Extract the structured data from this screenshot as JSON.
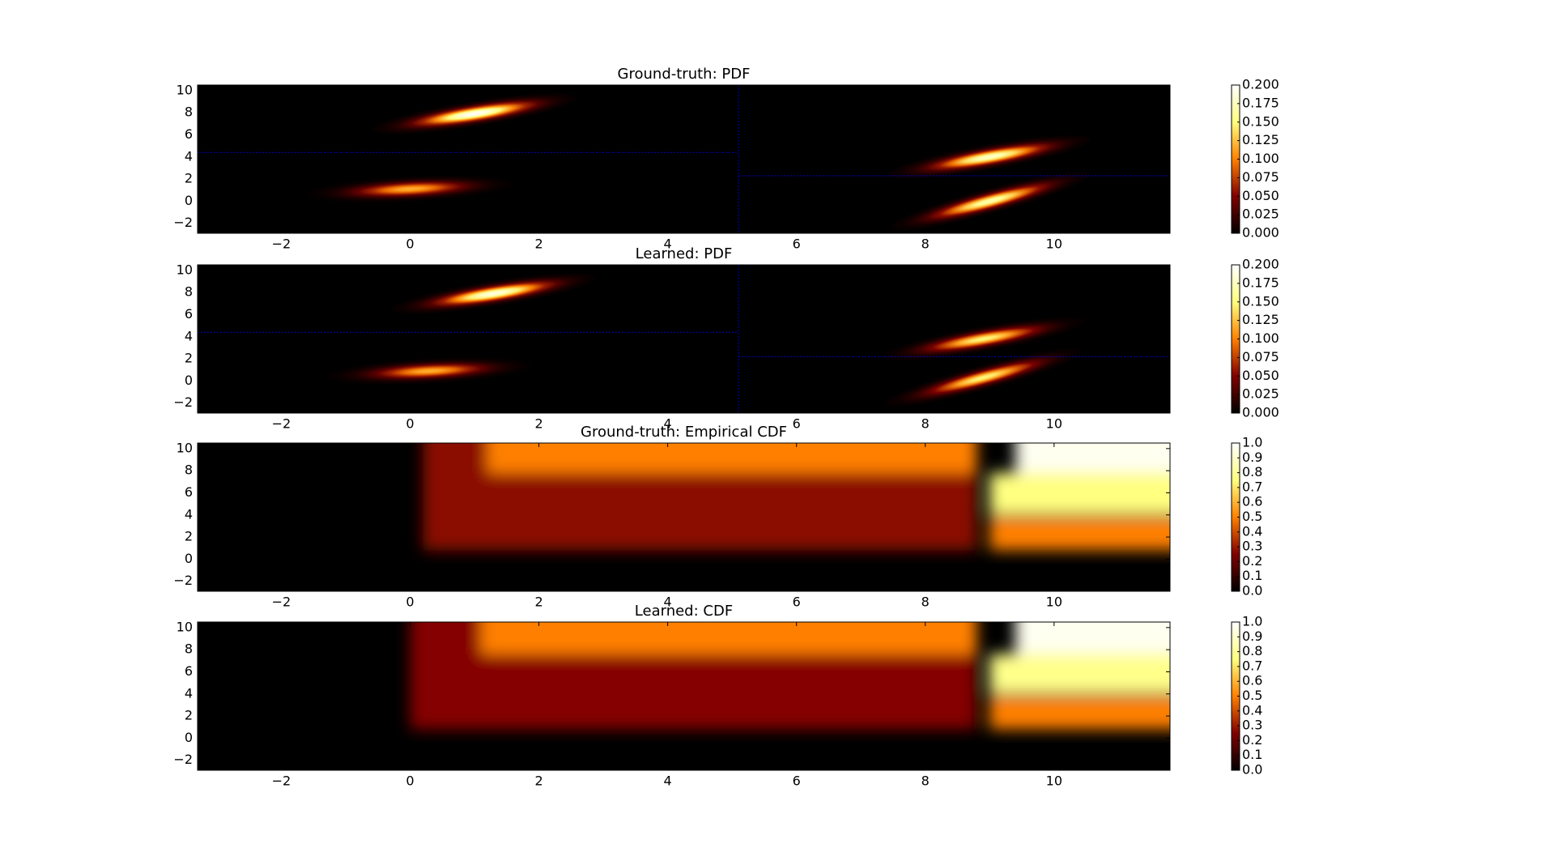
{
  "chart_data": [
    {
      "type": "pdf",
      "title": "Ground-truth: PDF",
      "colormap": "afmhot",
      "xlim": [
        -3.3,
        11.8
      ],
      "ylim": [
        -2.9,
        10.5
      ],
      "xticks": [
        {
          "value": -2,
          "label": "−2"
        },
        0,
        2,
        4,
        6,
        8,
        10
      ],
      "yticks": [
        {
          "value": -2,
          "label": "−2"
        },
        0,
        2,
        4,
        6,
        8,
        10
      ],
      "clim": [
        0,
        0.2
      ],
      "cticks": [
        {
          "value": 0,
          "label": "0.000"
        },
        0.025,
        {
          "value": 0.05,
          "label": "0.050"
        },
        0.075,
        {
          "value": 0.1,
          "label": "0.100"
        },
        0.125,
        {
          "value": 0.15,
          "label": "0.150"
        },
        0.175,
        {
          "value": 0.2,
          "label": "0.200"
        }
      ],
      "split_x": 5.1,
      "split_y_left": 4.4,
      "split_y_right": 2.3,
      "blobs": [
        {
          "x": 1.0,
          "y": 7.9,
          "peak": 0.2
        },
        {
          "x": 0.0,
          "y": 1.1,
          "peak": 0.12
        },
        {
          "x": 9.0,
          "y": 4.0,
          "peak": 0.18
        },
        {
          "x": 9.0,
          "y": 0.0,
          "peak": 0.17
        }
      ]
    },
    {
      "type": "pdf",
      "title": "Learned: PDF",
      "colormap": "afmhot",
      "xlim": [
        -3.3,
        11.8
      ],
      "ylim": [
        -2.9,
        10.5
      ],
      "xticks": [
        {
          "value": -2,
          "label": "−2"
        },
        0,
        2,
        4,
        6,
        8,
        10
      ],
      "yticks": [
        {
          "value": -2,
          "label": "−2"
        },
        0,
        2,
        4,
        6,
        8,
        10
      ],
      "clim": [
        0,
        0.2
      ],
      "cticks": [
        {
          "value": 0,
          "label": "0.000"
        },
        0.025,
        {
          "value": 0.05,
          "label": "0.050"
        },
        0.075,
        {
          "value": 0.1,
          "label": "0.100"
        },
        0.125,
        {
          "value": 0.15,
          "label": "0.150"
        },
        0.175,
        {
          "value": 0.2,
          "label": "0.200"
        }
      ],
      "split_x": 5.1,
      "split_y_left": 4.4,
      "split_y_right": 2.2,
      "blobs": [
        {
          "x": 1.3,
          "y": 7.9,
          "peak": 0.19
        },
        {
          "x": 0.3,
          "y": 0.9,
          "peak": 0.12
        },
        {
          "x": 8.9,
          "y": 3.8,
          "peak": 0.15
        },
        {
          "x": 8.9,
          "y": 0.3,
          "peak": 0.15
        }
      ]
    },
    {
      "type": "cdf",
      "title": "Ground-truth: Empirical CDF",
      "colormap": "afmhot",
      "xlim": [
        -3.3,
        11.8
      ],
      "ylim": [
        -2.9,
        10.5
      ],
      "xticks": [
        {
          "value": -2,
          "label": "−2"
        },
        0,
        2,
        4,
        6,
        8,
        10
      ],
      "yticks": [
        {
          "value": -2,
          "label": "−2"
        },
        0,
        2,
        4,
        6,
        8,
        10
      ],
      "clim": [
        0,
        1
      ],
      "cticks": [
        {
          "value": 0,
          "label": "0.0"
        },
        0.1,
        0.2,
        0.3,
        0.4,
        0.5,
        0.6,
        0.7,
        0.8,
        0.9,
        {
          "value": 1,
          "label": "1.0"
        }
      ],
      "regions": [
        {
          "x": [
            0.2,
            8.8
          ],
          "y": [
            0.8,
            10.5
          ],
          "value": 0.27
        },
        {
          "x": [
            1.2,
            8.8
          ],
          "y": [
            7.8,
            10.5
          ],
          "value": 0.5
        },
        {
          "x": [
            9.0,
            11.8
          ],
          "y": [
            0.8,
            3.8
          ],
          "value": 0.5
        },
        {
          "x": [
            9.0,
            11.8
          ],
          "y": [
            4.0,
            7.8
          ],
          "value": 0.75
        },
        {
          "x": [
            9.4,
            11.8
          ],
          "y": [
            7.8,
            10.5
          ],
          "value": 0.97
        }
      ]
    },
    {
      "type": "cdf",
      "title": "Learned: CDF",
      "colormap": "afmhot",
      "xlim": [
        -3.3,
        11.8
      ],
      "ylim": [
        -2.9,
        10.5
      ],
      "xticks": [
        {
          "value": -2,
          "label": "−2"
        },
        0,
        2,
        4,
        6,
        8,
        10
      ],
      "yticks": [
        {
          "value": -2,
          "label": "−2"
        },
        0,
        2,
        4,
        6,
        8,
        10
      ],
      "clim": [
        0,
        1
      ],
      "cticks": [
        {
          "value": 0,
          "label": "0.0"
        },
        0.1,
        0.2,
        0.3,
        0.4,
        0.5,
        0.6,
        0.7,
        0.8,
        0.9,
        {
          "value": 1,
          "label": "1.0"
        }
      ],
      "regions": [
        {
          "x": [
            0.0,
            8.8
          ],
          "y": [
            0.8,
            10.5
          ],
          "value": 0.26
        },
        {
          "x": [
            1.1,
            8.8
          ],
          "y": [
            7.6,
            10.5
          ],
          "value": 0.5
        },
        {
          "x": [
            9.0,
            11.8
          ],
          "y": [
            0.8,
            3.8
          ],
          "value": 0.5
        },
        {
          "x": [
            9.0,
            11.8
          ],
          "y": [
            4.0,
            7.6
          ],
          "value": 0.77
        },
        {
          "x": [
            9.4,
            11.8
          ],
          "y": [
            7.6,
            10.5
          ],
          "value": 0.97
        }
      ]
    }
  ]
}
